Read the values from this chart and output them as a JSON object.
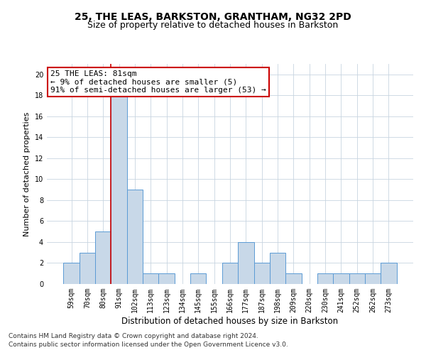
{
  "title1": "25, THE LEAS, BARKSTON, GRANTHAM, NG32 2PD",
  "title2": "Size of property relative to detached houses in Barkston",
  "xlabel": "Distribution of detached houses by size in Barkston",
  "ylabel": "Number of detached properties",
  "categories": [
    "59sqm",
    "70sqm",
    "80sqm",
    "91sqm",
    "102sqm",
    "113sqm",
    "123sqm",
    "134sqm",
    "145sqm",
    "155sqm",
    "166sqm",
    "177sqm",
    "187sqm",
    "198sqm",
    "209sqm",
    "220sqm",
    "230sqm",
    "241sqm",
    "252sqm",
    "262sqm",
    "273sqm"
  ],
  "values": [
    2,
    3,
    5,
    18,
    9,
    1,
    1,
    0,
    1,
    0,
    2,
    4,
    2,
    3,
    1,
    0,
    1,
    1,
    1,
    1,
    2
  ],
  "bar_color": "#c8d8e8",
  "bar_edge_color": "#5b9bd5",
  "highlight_line_color": "#cc0000",
  "annotation_text": "25 THE LEAS: 81sqm\n← 9% of detached houses are smaller (5)\n91% of semi-detached houses are larger (53) →",
  "annotation_box_color": "#ffffff",
  "annotation_box_edge_color": "#cc0000",
  "ylim": [
    0,
    21
  ],
  "yticks": [
    0,
    2,
    4,
    6,
    8,
    10,
    12,
    14,
    16,
    18,
    20
  ],
  "footnote1": "Contains HM Land Registry data © Crown copyright and database right 2024.",
  "footnote2": "Contains public sector information licensed under the Open Government Licence v3.0.",
  "title1_fontsize": 10,
  "title2_fontsize": 9,
  "xlabel_fontsize": 8.5,
  "ylabel_fontsize": 8,
  "tick_fontsize": 7,
  "annotation_fontsize": 8,
  "footnote_fontsize": 6.5
}
